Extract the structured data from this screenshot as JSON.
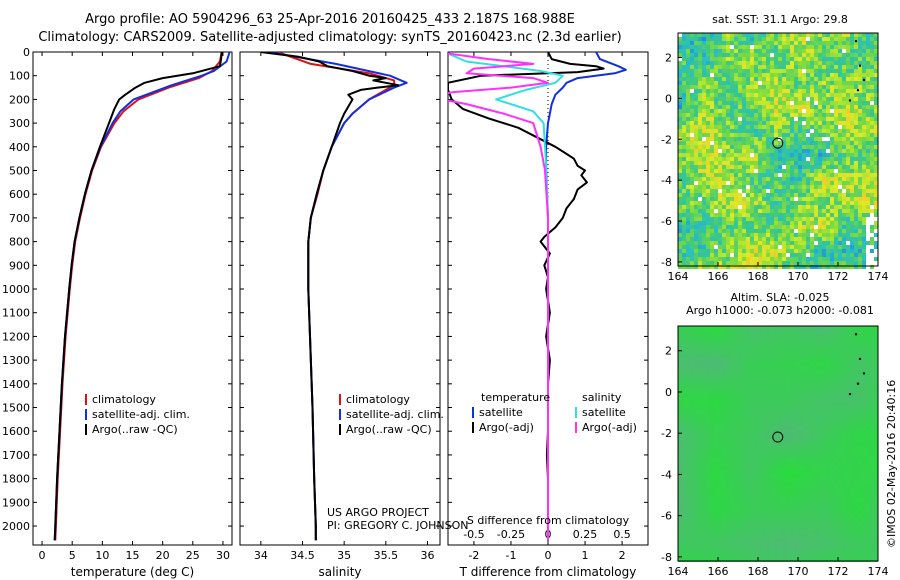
{
  "titles": {
    "line1": "Argo profile: AO 5904296_63 25-Apr-2016 20160425_433 2.187S 168.988E",
    "line2": "Climatology: CARS2009. Satellite-adjusted climatology: synTS_20160423.nc (2.3d earlier)"
  },
  "project": {
    "line1": "US ARGO PROJECT",
    "line2": "PI: GREGORY C. JOHNSON"
  },
  "credit": "©IMOS 02-May-2016 20:40:16",
  "maps": {
    "sst_title": "sat. SST: 31.1  Argo: 29.8",
    "sla_title1": "Altim. SLA: -0.025",
    "sla_title2": "Argo h1000: -0.073 h2000: -0.081",
    "float_lon": 168.988,
    "float_lat": -2.187
  },
  "colors": {
    "climatology": "#e01010",
    "satellite_clim": "#1030e0",
    "argo": "#000000",
    "sat_diff_S": "#30e0e0",
    "argo_diff_S": "#ff30ff"
  },
  "chart_data": [
    {
      "type": "line",
      "name": "temperature",
      "xlabel": "temperature (deg C)",
      "ylabel": "",
      "xlim": [
        -1.5,
        31.5
      ],
      "ylim": [
        2080,
        0
      ],
      "xticks": [
        0,
        5,
        10,
        15,
        20,
        25,
        30
      ],
      "yticks": [
        0,
        100,
        200,
        300,
        400,
        500,
        600,
        700,
        800,
        900,
        1000,
        1100,
        1200,
        1300,
        1400,
        1500,
        1600,
        1700,
        1800,
        1900,
        2000
      ],
      "legend": [
        "climatology",
        "satellite-adj. clim.",
        "Argo(..raw -QC)"
      ],
      "series": [
        {
          "name": "climatology",
          "color_key": "climatology",
          "depth": [
            0,
            40,
            80,
            110,
            150,
            200,
            250,
            300,
            400,
            500,
            600,
            700,
            800,
            900,
            1000,
            1200,
            1400,
            1600,
            1800,
            2000,
            2060
          ],
          "values": [
            29.8,
            29.5,
            28.2,
            26.0,
            21.0,
            16.0,
            13.5,
            12.0,
            9.8,
            8.3,
            7.2,
            6.3,
            5.5,
            5.0,
            4.6,
            3.9,
            3.4,
            3.0,
            2.6,
            2.3,
            2.2
          ]
        },
        {
          "name": "satellite-adj. clim.",
          "color_key": "satellite_clim",
          "depth": [
            0,
            40,
            80,
            100,
            140,
            200,
            250,
            300,
            400,
            500,
            600,
            700,
            800,
            900,
            1000,
            1200,
            1400,
            1600,
            1800,
            2000,
            2060
          ],
          "values": [
            31.1,
            30.6,
            28.5,
            26.5,
            21.5,
            15.2,
            13.0,
            11.7,
            9.7,
            8.2,
            7.1,
            6.2,
            5.4,
            4.9,
            4.5,
            3.8,
            3.3,
            2.9,
            2.5,
            2.2,
            2.1
          ]
        },
        {
          "name": "Argo(..raw -QC)",
          "color_key": "argo",
          "depth": [
            0,
            30,
            60,
            90,
            110,
            130,
            150,
            180,
            200,
            240,
            280,
            320,
            400,
            500,
            600,
            700,
            800,
            900,
            1000,
            1200,
            1400,
            1600,
            1800,
            2000,
            2060
          ],
          "values": [
            29.8,
            29.7,
            29.5,
            25.0,
            20.0,
            17.0,
            15.5,
            13.8,
            12.8,
            12.0,
            11.4,
            10.8,
            9.6,
            8.2,
            7.1,
            6.2,
            5.4,
            4.9,
            4.5,
            3.8,
            3.3,
            2.9,
            2.5,
            2.2,
            2.1
          ]
        }
      ]
    },
    {
      "type": "line",
      "name": "salinity",
      "xlabel": "salinity",
      "xlim": [
        33.75,
        36.15
      ],
      "ylim": [
        2080,
        0
      ],
      "xticks": [
        34,
        34.5,
        35,
        35.5,
        36
      ],
      "legend": [
        "climatology",
        "satellite-adj. clim.",
        "Argo(..raw -QC)"
      ],
      "series": [
        {
          "name": "climatology",
          "color_key": "climatology",
          "depth": [
            0,
            50,
            90,
            120,
            140,
            160,
            200,
            260,
            300,
            400,
            500,
            600,
            700,
            800,
            1000,
            1200,
            1500,
            1800,
            2000,
            2060
          ],
          "values": [
            34.2,
            34.6,
            35.3,
            35.6,
            35.6,
            35.5,
            35.3,
            35.1,
            35.0,
            34.85,
            34.75,
            34.68,
            34.6,
            34.57,
            34.57,
            34.59,
            34.62,
            34.64,
            34.66,
            34.66
          ]
        },
        {
          "name": "satellite-adj. clim.",
          "color_key": "satellite_clim",
          "depth": [
            0,
            50,
            100,
            130,
            150,
            200,
            260,
            300,
            400,
            500,
            600,
            700,
            800,
            1000,
            1200,
            1500,
            1800,
            2000,
            2060
          ],
          "values": [
            34.1,
            34.9,
            35.55,
            35.75,
            35.6,
            35.3,
            35.1,
            35.0,
            34.85,
            34.75,
            34.67,
            34.6,
            34.57,
            34.57,
            34.59,
            34.62,
            34.64,
            34.66,
            34.66
          ]
        },
        {
          "name": "Argo(..raw -QC)",
          "color_key": "argo",
          "depth": [
            0,
            20,
            40,
            60,
            80,
            100,
            110,
            120,
            140,
            150,
            160,
            180,
            200,
            260,
            300,
            400,
            500,
            600,
            700,
            800,
            1000,
            1200,
            1500,
            1800,
            2000,
            2060
          ],
          "values": [
            34.0,
            34.45,
            34.7,
            34.8,
            35.1,
            35.3,
            35.5,
            35.35,
            35.65,
            35.4,
            35.2,
            35.05,
            35.1,
            35.0,
            34.95,
            34.85,
            34.75,
            34.67,
            34.6,
            34.57,
            34.57,
            34.59,
            34.62,
            34.64,
            34.66,
            34.66
          ]
        }
      ]
    },
    {
      "type": "line",
      "name": "differences",
      "xlabel": "T difference from climatology",
      "xlabel_top": "S difference from climatology",
      "xlim": [
        -2.7,
        2.7
      ],
      "ylim": [
        2080,
        0
      ],
      "xticks_T": [
        -2,
        -1,
        0,
        1,
        2
      ],
      "xticks_S": [
        -0.5,
        -0.25,
        0,
        0.25,
        0.5
      ],
      "xtick_labels_S": [
        "-0.5",
        "-0.25",
        "0",
        "0.25",
        "0.5"
      ],
      "legend_T_header": "temperature",
      "legend_S_header": "salinity",
      "legend": [
        "satellite",
        "Argo(-adj)",
        "satellite",
        "Argo(-adj)"
      ],
      "series": [
        {
          "name": "T satellite",
          "color_key": "satellite_clim",
          "depth": [
            0,
            30,
            60,
            75,
            90,
            110,
            130,
            150,
            180,
            220,
            260,
            300,
            400,
            500,
            700,
            1000,
            1500,
            2000,
            2060
          ],
          "values": [
            1.3,
            1.4,
            1.9,
            2.1,
            1.8,
            0.8,
            0.5,
            0.4,
            0.2,
            0.1,
            0.05,
            0.0,
            -0.05,
            -0.05,
            0.0,
            0.0,
            0.0,
            0.0,
            0.0
          ]
        },
        {
          "name": "T Argo(-adj)",
          "color_key": "argo",
          "depth": [
            0,
            30,
            50,
            60,
            70,
            85,
            100,
            130,
            160,
            200,
            240,
            280,
            320,
            360,
            400,
            430,
            450,
            480,
            500,
            520,
            550,
            580,
            620,
            660,
            700,
            740,
            780,
            800,
            850,
            900,
            950,
            1000,
            1100,
            1200,
            1300,
            1400,
            1500,
            1600,
            1700,
            1800,
            1900,
            2000,
            2060
          ],
          "values": [
            0.0,
            0.1,
            0.6,
            1.3,
            1.5,
            0.8,
            -1.8,
            -2.7,
            -2.7,
            -2.6,
            -2.3,
            -1.6,
            -0.8,
            -0.3,
            0.2,
            0.5,
            0.7,
            0.8,
            1.0,
            0.9,
            1.05,
            0.8,
            0.7,
            0.5,
            0.4,
            0.2,
            -0.1,
            -0.2,
            0.05,
            -0.1,
            0.0,
            -0.05,
            0.05,
            -0.05,
            0.05,
            0.0,
            0.0,
            0.0,
            -0.03,
            0.0,
            0.0,
            0.0,
            0.0
          ]
        },
        {
          "name": "S satellite",
          "color_key": "sat_diff_S",
          "depth": [
            0,
            40,
            60,
            80,
            100,
            130,
            160,
            200,
            250,
            300,
            400,
            500,
            700,
            1000,
            1500,
            2000,
            2060
          ],
          "values": [
            -0.7,
            -0.55,
            -0.3,
            -0.05,
            0.1,
            0.05,
            -0.15,
            -0.35,
            -0.1,
            -0.03,
            -0.02,
            -0.01,
            0.0,
            0.0,
            0.0,
            0.0,
            0.0
          ]
        },
        {
          "name": "S Argo(-adj)",
          "color_key": "argo_diff_S",
          "depth": [
            0,
            30,
            50,
            70,
            90,
            110,
            130,
            150,
            170,
            190,
            220,
            260,
            300,
            400,
            500,
            700,
            1000,
            1500,
            2000,
            2060
          ],
          "values": [
            -0.75,
            -0.4,
            -0.1,
            -0.5,
            -0.55,
            -0.1,
            0.0,
            -0.25,
            -0.65,
            -0.8,
            -0.55,
            -0.3,
            -0.1,
            -0.05,
            -0.02,
            0.0,
            0.0,
            0.0,
            0.0,
            0.0
          ]
        }
      ]
    },
    {
      "type": "heatmap",
      "name": "sst-map",
      "title": "sat. SST: 31.1  Argo: 29.8",
      "xlim": [
        164,
        174
      ],
      "ylim": [
        -8.2,
        3.2
      ],
      "xticks": [
        164,
        166,
        168,
        170,
        172,
        174
      ],
      "yticks": [
        2,
        0,
        -2,
        -4,
        -6,
        -8
      ]
    },
    {
      "type": "heatmap",
      "name": "sla-map",
      "title": "Altim. SLA: -0.025",
      "xlim": [
        164,
        174
      ],
      "ylim": [
        -8.2,
        3.2
      ],
      "xticks": [
        164,
        166,
        168,
        170,
        172,
        174
      ],
      "yticks": [
        2,
        0,
        -2,
        -4,
        -6,
        -8
      ]
    }
  ]
}
